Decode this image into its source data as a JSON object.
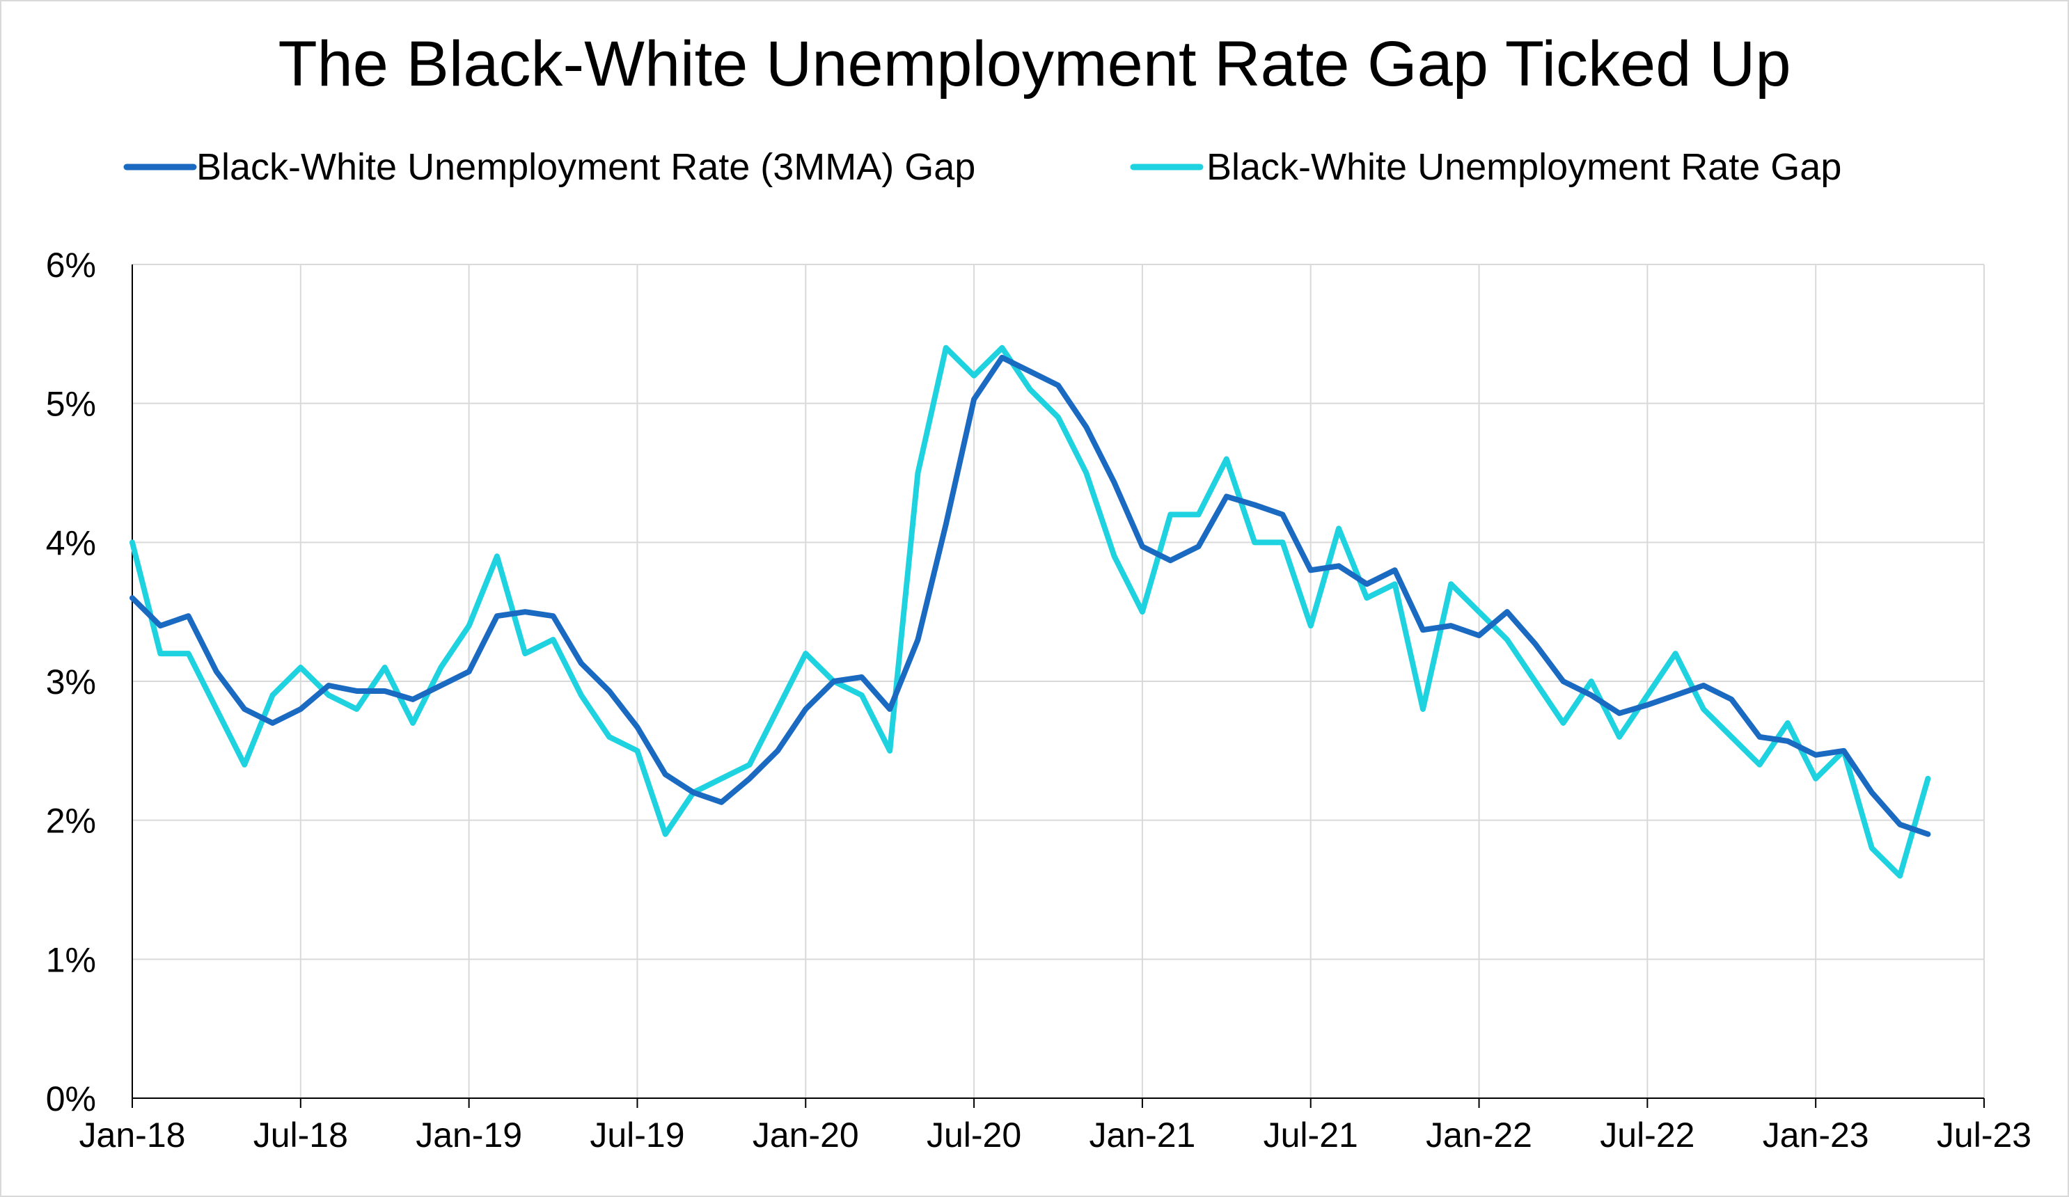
{
  "chart_data": {
    "type": "line",
    "title": "The Black-White Unemployment Rate Gap Ticked Up",
    "xlabel": "",
    "ylabel": "",
    "ylim": [
      0,
      6
    ],
    "y_ticks": [
      0,
      1,
      2,
      3,
      4,
      5,
      6
    ],
    "y_tick_labels": [
      "0%",
      "1%",
      "2%",
      "3%",
      "4%",
      "5%",
      "6%"
    ],
    "x_ticks": [
      0,
      6,
      12,
      18,
      24,
      30,
      36,
      42,
      48,
      54,
      60,
      66
    ],
    "x_tick_labels": [
      "Jan-18",
      "Jul-18",
      "Jan-19",
      "Jul-19",
      "Jan-20",
      "Jul-20",
      "Jan-21",
      "Jul-21",
      "Jan-22",
      "Jul-22",
      "Jan-23",
      "Jul-23"
    ],
    "xlim": [
      0,
      66
    ],
    "x_start": "Jan-18",
    "grid": true,
    "legend_position": "top-center",
    "series": [
      {
        "name": "Black-White Unemployment Rate (3MMA) Gap",
        "color": "#1b6ac2",
        "values": [
          3.6,
          3.4,
          3.47,
          3.07,
          2.8,
          2.7,
          2.8,
          2.97,
          2.93,
          2.93,
          2.87,
          2.97,
          3.07,
          3.47,
          3.5,
          3.47,
          3.13,
          2.93,
          2.67,
          2.33,
          2.2,
          2.13,
          2.3,
          2.5,
          2.8,
          3.0,
          3.03,
          2.8,
          3.3,
          4.13,
          5.03,
          5.33,
          5.23,
          5.13,
          4.83,
          4.43,
          3.97,
          3.87,
          3.97,
          4.33,
          4.27,
          4.2,
          3.8,
          3.83,
          3.7,
          3.8,
          3.37,
          3.4,
          3.33,
          3.5,
          3.27,
          3.0,
          2.9,
          2.77,
          2.83,
          2.9,
          2.97,
          2.87,
          2.6,
          2.57,
          2.47,
          2.5,
          2.2,
          1.97,
          1.9
        ]
      },
      {
        "name": "Black-White Unemployment Rate Gap",
        "color": "#1ed3df",
        "values": [
          4.0,
          3.2,
          3.2,
          2.8,
          2.4,
          2.9,
          3.1,
          2.9,
          2.8,
          3.1,
          2.7,
          3.1,
          3.4,
          3.9,
          3.2,
          3.3,
          2.9,
          2.6,
          2.5,
          1.9,
          2.2,
          2.3,
          2.4,
          2.8,
          3.2,
          3.0,
          2.9,
          2.5,
          4.5,
          5.4,
          5.2,
          5.4,
          5.1,
          4.9,
          4.5,
          3.9,
          3.5,
          4.2,
          4.2,
          4.6,
          4.0,
          4.0,
          3.4,
          4.1,
          3.6,
          3.7,
          2.8,
          3.7,
          3.5,
          3.3,
          3.0,
          2.7,
          3.0,
          2.6,
          2.9,
          3.2,
          2.8,
          2.6,
          2.4,
          2.7,
          2.3,
          2.5,
          1.8,
          1.6,
          2.3
        ]
      }
    ]
  }
}
